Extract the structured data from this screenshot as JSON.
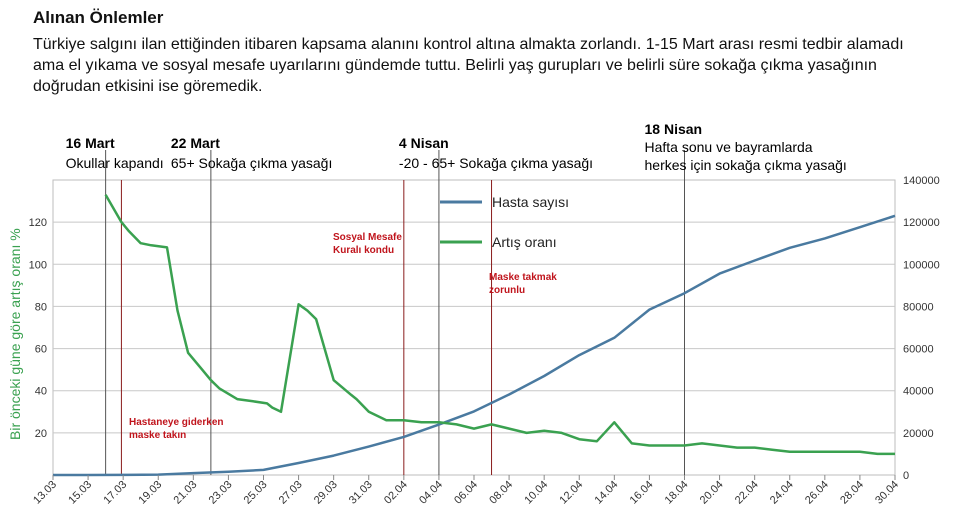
{
  "header": {
    "title": "Alınan Önlemler",
    "intro": "Türkiye salgını ilan ettiğinden itibaren kapsama alanını kontrol altına almakta zorlandı. 1-15 Mart arası resmi tedbir alamadı ama el yıkama ve sosyal mesafe uyarılarını gündemde tuttu. Belirli yaş gurupları ve belirli süre sokağa çıkma yasağının doğrudan etkisini ise göremedik."
  },
  "events": [
    {
      "date": "16 Mart",
      "text": [
        "Okullar kapandı"
      ],
      "day": 3
    },
    {
      "date": "22 Mart",
      "text": [
        "65+ Sokağa çıkma yasağı"
      ],
      "day": 9
    },
    {
      "date": "4 Nisan",
      "text": [
        "-20 - 65+ Sokağa çıkma yasağı"
      ],
      "day": 22
    },
    {
      "date": "18 Nisan",
      "text": [
        "Hafta sonu ve bayramlarda",
        "herkes için sokağa çıkma yasağı"
      ],
      "day": 36
    }
  ],
  "annotations": [
    {
      "lines": [
        "Hastaneye giderken",
        "maske takın"
      ],
      "day": 3.9
    },
    {
      "lines": [
        "Sosyal Mesafe",
        "Kuralı kondu"
      ],
      "day": 20
    },
    {
      "lines": [
        "Maske takmak",
        "zorunlu"
      ],
      "day": 25
    }
  ],
  "chart_data": {
    "type": "line",
    "ylabel": "Bir önceki güne göre artış oranı %",
    "left_axis": {
      "min": 0,
      "max": 140,
      "ticks": [
        20,
        40,
        60,
        80,
        100,
        120
      ]
    },
    "right_axis": {
      "min": 0,
      "max": 140000,
      "ticks": [
        0,
        20000,
        40000,
        60000,
        80000,
        100000,
        120000,
        140000
      ]
    },
    "x_ticks": [
      "13.03",
      "15.03",
      "17.03",
      "19.03",
      "21.03",
      "23.03",
      "25.03",
      "27.03",
      "29.03",
      "31.03",
      "02.04",
      "04.04",
      "06.04",
      "08.04",
      "10.04",
      "12.04",
      "14.04",
      "16.04",
      "18.04",
      "20.04",
      "22.04",
      "24.04",
      "26.04",
      "28.04",
      "30.04"
    ],
    "x_range": [
      0,
      48
    ],
    "grid": true,
    "legend_position": "top-center",
    "series": [
      {
        "name": "Hasta sayısı",
        "axis": "right",
        "color": "#4a7aa0",
        "x": [
          0,
          2,
          4,
          6,
          8,
          10,
          12,
          14,
          16,
          18,
          20,
          22,
          24,
          26,
          28,
          30,
          32,
          34,
          36,
          38,
          40,
          42,
          44,
          46,
          48
        ],
        "y": [
          0,
          0,
          50,
          200,
          900,
          1500,
          2400,
          5700,
          9200,
          13500,
          18100,
          23900,
          30200,
          38200,
          47000,
          56900,
          65100,
          78500,
          86300,
          95600,
          101800,
          107800,
          112300,
          117600,
          123000
        ]
      },
      {
        "name": "Artış oranı",
        "axis": "left",
        "color": "#3aa150",
        "x": [
          3,
          3.9,
          4.3,
          5,
          5.6,
          6.5,
          7.1,
          7.7,
          8.5,
          9,
          9.5,
          10.5,
          11.4,
          12.2,
          12.5,
          13,
          14,
          14.5,
          15,
          16,
          17,
          17.3,
          18,
          19,
          20,
          21,
          22,
          23,
          24,
          25,
          26,
          27,
          28,
          29,
          30,
          31,
          32,
          33,
          34,
          35,
          36,
          37,
          38,
          39,
          40,
          41,
          42,
          43,
          44,
          45,
          46,
          47,
          48
        ],
        "y": [
          133,
          120,
          116,
          110,
          109,
          108,
          78,
          58,
          50,
          45,
          41,
          36,
          35,
          34,
          32,
          30,
          81,
          78,
          74,
          45,
          38,
          36,
          30,
          26,
          26,
          25,
          25,
          24,
          22,
          24,
          22,
          20,
          21,
          20,
          17,
          16,
          25,
          15,
          14,
          14,
          14,
          15,
          14,
          13,
          13,
          12,
          11,
          11,
          11,
          11,
          11,
          10,
          10
        ]
      }
    ]
  }
}
